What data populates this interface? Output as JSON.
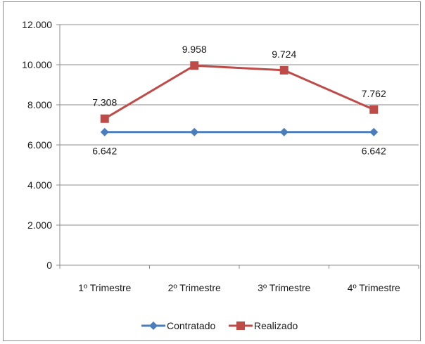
{
  "chart_data": {
    "type": "line",
    "categories": [
      "1º Trimestre",
      "2º Trimestre",
      "3º Trimestre",
      "4º Trimestre"
    ],
    "series": [
      {
        "name": "Contratado",
        "values": [
          6642,
          6642,
          6642,
          6642
        ],
        "color": "#4a7ebb",
        "marker": "diamond",
        "data_labels": [
          "6.642",
          "",
          "",
          "6.642"
        ]
      },
      {
        "name": "Realizado",
        "values": [
          7308,
          9958,
          9724,
          7762
        ],
        "color": "#be4b48",
        "marker": "square",
        "data_labels": [
          "7.308",
          "9.958",
          "9.724",
          "7.762"
        ]
      }
    ],
    "y_ticks": [
      "0",
      "2.000",
      "4.000",
      "6.000",
      "8.000",
      "10.000",
      "12.000"
    ],
    "ylim": [
      0,
      12000
    ],
    "grid": true,
    "legend": "bottom",
    "title": "",
    "xlabel": "",
    "ylabel": ""
  }
}
